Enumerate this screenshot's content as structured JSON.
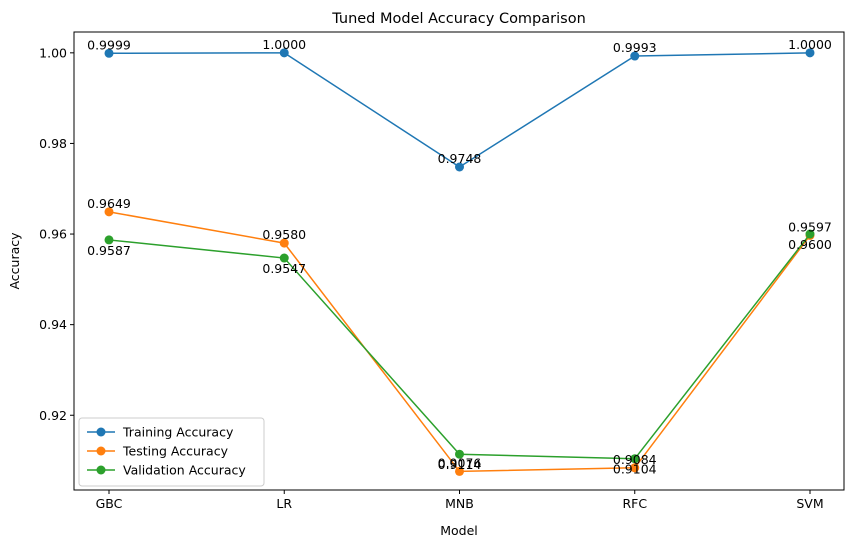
{
  "chart_data": {
    "type": "line",
    "title": "Tuned Model Accuracy Comparison",
    "xlabel": "Model",
    "ylabel": "Accuracy",
    "categories": [
      "GBC",
      "LR",
      "MNB",
      "RFC",
      "SVM"
    ],
    "ylim": [
      0.9035,
      1.0046
    ],
    "yticks": [
      0.92,
      0.94,
      0.96,
      0.98,
      1.0
    ],
    "ytick_labels": [
      "0.92",
      "0.94",
      "0.96",
      "0.98",
      "1.00"
    ],
    "grid": false,
    "legend_position": "lower-left",
    "series": [
      {
        "name": "Training Accuracy",
        "color": "#1f77b4",
        "values": [
          0.9999,
          1.0,
          0.9748,
          0.9993,
          1.0
        ],
        "labels": [
          "0.9999",
          "1.0000",
          "0.9748",
          "0.9993",
          "1.0000"
        ],
        "label_side": [
          "above",
          "above",
          "above",
          "above",
          "above"
        ]
      },
      {
        "name": "Testing Accuracy",
        "color": "#ff7f0e",
        "values": [
          0.9649,
          0.958,
          0.9076,
          0.9084,
          0.9597
        ],
        "labels": [
          "0.9649",
          "0.9580",
          "0.9076",
          "0.9084",
          "0.9597"
        ],
        "label_side": [
          "above",
          "above",
          "above",
          "above",
          "above"
        ]
      },
      {
        "name": "Validation Accuracy",
        "color": "#2ca02c",
        "values": [
          0.9587,
          0.9547,
          0.9114,
          0.9104,
          0.96
        ],
        "labels": [
          "0.9587",
          "0.9547",
          "0.9114",
          "0.9104",
          "0.9600"
        ],
        "label_side": [
          "below",
          "below",
          "below",
          "below",
          "below"
        ]
      }
    ]
  }
}
